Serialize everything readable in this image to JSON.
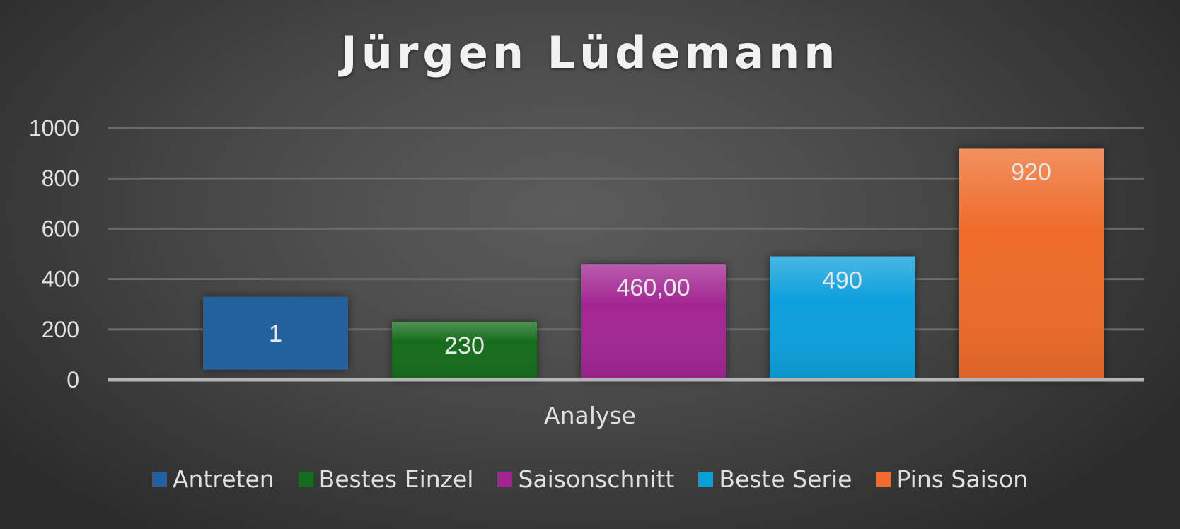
{
  "chart_data": {
    "type": "bar",
    "title": "Jürgen Lüdemann",
    "xlabel": "Analyse",
    "ylabel": "",
    "categories": [
      "Analyse"
    ],
    "ylim": [
      0,
      1000
    ],
    "yticks": [
      0,
      200,
      400,
      600,
      800,
      1000
    ],
    "grid": true,
    "legend_position": "bottom",
    "series": [
      {
        "name": "Antreten",
        "value": 1,
        "label": "1",
        "displayed_range": [
          40,
          330
        ],
        "color": "#22609e"
      },
      {
        "name": "Bestes Einzel",
        "value": 230,
        "label": "230",
        "color": "#146c1e"
      },
      {
        "name": "Saisonschnitt",
        "value": 460,
        "label": "460,00",
        "color": "#a22592"
      },
      {
        "name": "Beste Serie",
        "value": 490,
        "label": "490",
        "color": "#08a0dc"
      },
      {
        "name": "Pins Saison",
        "value": 920,
        "label": "920",
        "color": "#ee6c2c"
      }
    ]
  }
}
